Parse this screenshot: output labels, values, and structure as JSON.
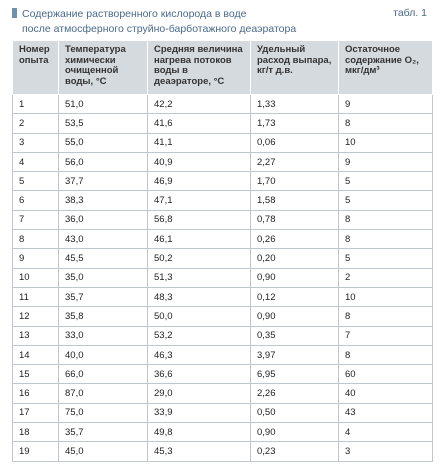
{
  "header": {
    "title_line1": "Содержание растворенного кислорода в воде",
    "title_line2": "после атмосферного струйно-барботажного деаэратора",
    "table_no": "табл. 1"
  },
  "table": {
    "columns": [
      "Номер опыта",
      "Температура химически очищенной воды, °С",
      "Средняя величина нагрева потоков воды в деаэраторе, °С",
      "Удельный расход выпара, кг/т д.в.",
      "Остаточное содержание O₂, мкг/дм³"
    ],
    "rows": [
      [
        "1",
        "51,0",
        "42,2",
        "1,33",
        "9"
      ],
      [
        "2",
        "53,5",
        "41,6",
        "1,73",
        "8"
      ],
      [
        "3",
        "55,0",
        "41,1",
        "0,06",
        "10"
      ],
      [
        "4",
        "56,0",
        "40,9",
        "2,27",
        "9"
      ],
      [
        "5",
        "37,7",
        "46,9",
        "1,70",
        "5"
      ],
      [
        "6",
        "38,3",
        "47,1",
        "1,58",
        "5"
      ],
      [
        "7",
        "36,0",
        "56,8",
        "0,78",
        "8"
      ],
      [
        "8",
        "43,0",
        "46,1",
        "0,26",
        "8"
      ],
      [
        "9",
        "45,5",
        "50,2",
        "0,20",
        "5"
      ],
      [
        "10",
        "35,0",
        "51,3",
        "0,90",
        "2"
      ],
      [
        "11",
        "35,7",
        "48,3",
        "0,12",
        "10"
      ],
      [
        "12",
        "35,8",
        "50,0",
        "0,90",
        "8"
      ],
      [
        "13",
        "33,0",
        "53,2",
        "0,35",
        "7"
      ],
      [
        "14",
        "40,0",
        "46,3",
        "3,97",
        "8"
      ],
      [
        "15",
        "66,0",
        "36,6",
        "6,95",
        "60"
      ],
      [
        "16",
        "87,0",
        "29,0",
        "2,26",
        "40"
      ],
      [
        "17",
        "75,0",
        "33,9",
        "0,50",
        "43"
      ],
      [
        "18",
        "35,7",
        "49,8",
        "0,90",
        "4"
      ],
      [
        "19",
        "45,0",
        "45,3",
        "0,23",
        "3"
      ]
    ]
  }
}
